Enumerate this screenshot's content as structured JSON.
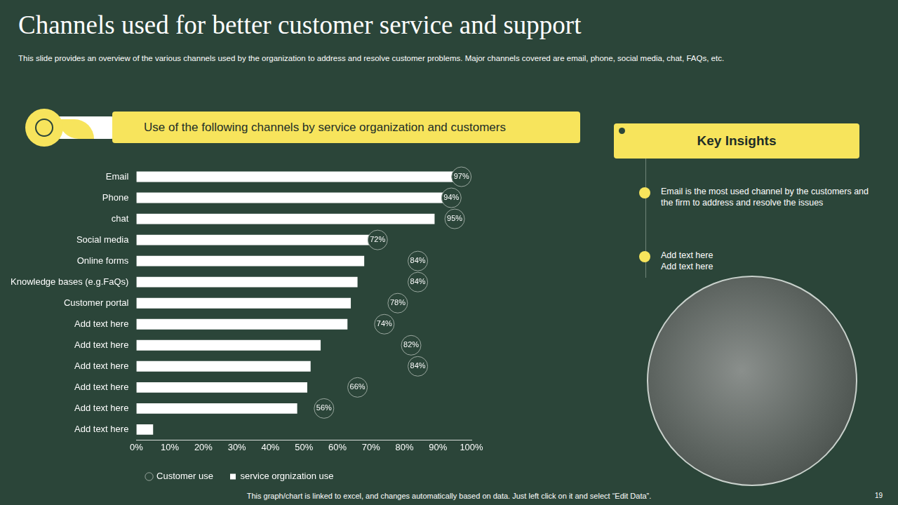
{
  "slide": {
    "title": "Channels used for better customer service and support",
    "subtitle": "This slide provides an overview of the various channels used by the organization to address and resolve customer problems. Major channels covered are email, phone, social media, chat, FAQs,  etc.",
    "chart_header": "Use of the following channels by service organization and customers",
    "insights_title": "Key Insights",
    "insights": [
      [
        "Email is the most used channel by the customers and the firm to address and resolve the issues"
      ],
      [
        "Add text here",
        "Add text here"
      ]
    ],
    "footnote": "This graph/chart is linked to excel, and changes automatically based on data. Just left click on it and select “Edit Data”.",
    "page_number": 19
  },
  "chart_data": {
    "type": "bar",
    "orientation": "horizontal",
    "categories": [
      "Email",
      "Phone",
      "chat",
      "Social media",
      "Online forms",
      "Knowledge bases (e.g.FaQs)",
      "Customer portal",
      "Add text here",
      "Add text here",
      "Add text here",
      "Add text here",
      "Add text here",
      "Add text here"
    ],
    "series": [
      {
        "name": "service orgnization use",
        "color": "#ffffff",
        "values": [
          95,
          95,
          89,
          72,
          68,
          66,
          64,
          63,
          55,
          52,
          51,
          48,
          5
        ]
      },
      {
        "name": "Customer use",
        "type": "scatter",
        "marker": "circle",
        "color": "#9aa79f",
        "data_labels": true,
        "values": [
          97,
          94,
          95,
          72,
          84,
          84,
          78,
          74,
          82,
          84,
          66,
          56,
          null
        ],
        "value_labels": [
          "97%",
          "94%",
          "95%",
          "72%",
          "84%",
          "84%",
          "78%",
          "74%",
          "82%",
          "84%",
          "66%",
          "56%",
          null
        ]
      }
    ],
    "xlim": [
      0,
      100
    ],
    "xticks": [
      {
        "value": 0,
        "label": "0%"
      },
      {
        "value": 10,
        "label": "10%"
      },
      {
        "value": 20,
        "label": "20%"
      },
      {
        "value": 30,
        "label": "30%"
      },
      {
        "value": 40,
        "label": "40%"
      },
      {
        "value": 50,
        "label": "50%"
      },
      {
        "value": 60,
        "label": "60%"
      },
      {
        "value": 70,
        "label": "70%"
      },
      {
        "value": 80,
        "label": "80%"
      },
      {
        "value": 90,
        "label": "90%"
      },
      {
        "value": 100,
        "label": "100%"
      }
    ],
    "grid": false,
    "legend": "bottom"
  }
}
